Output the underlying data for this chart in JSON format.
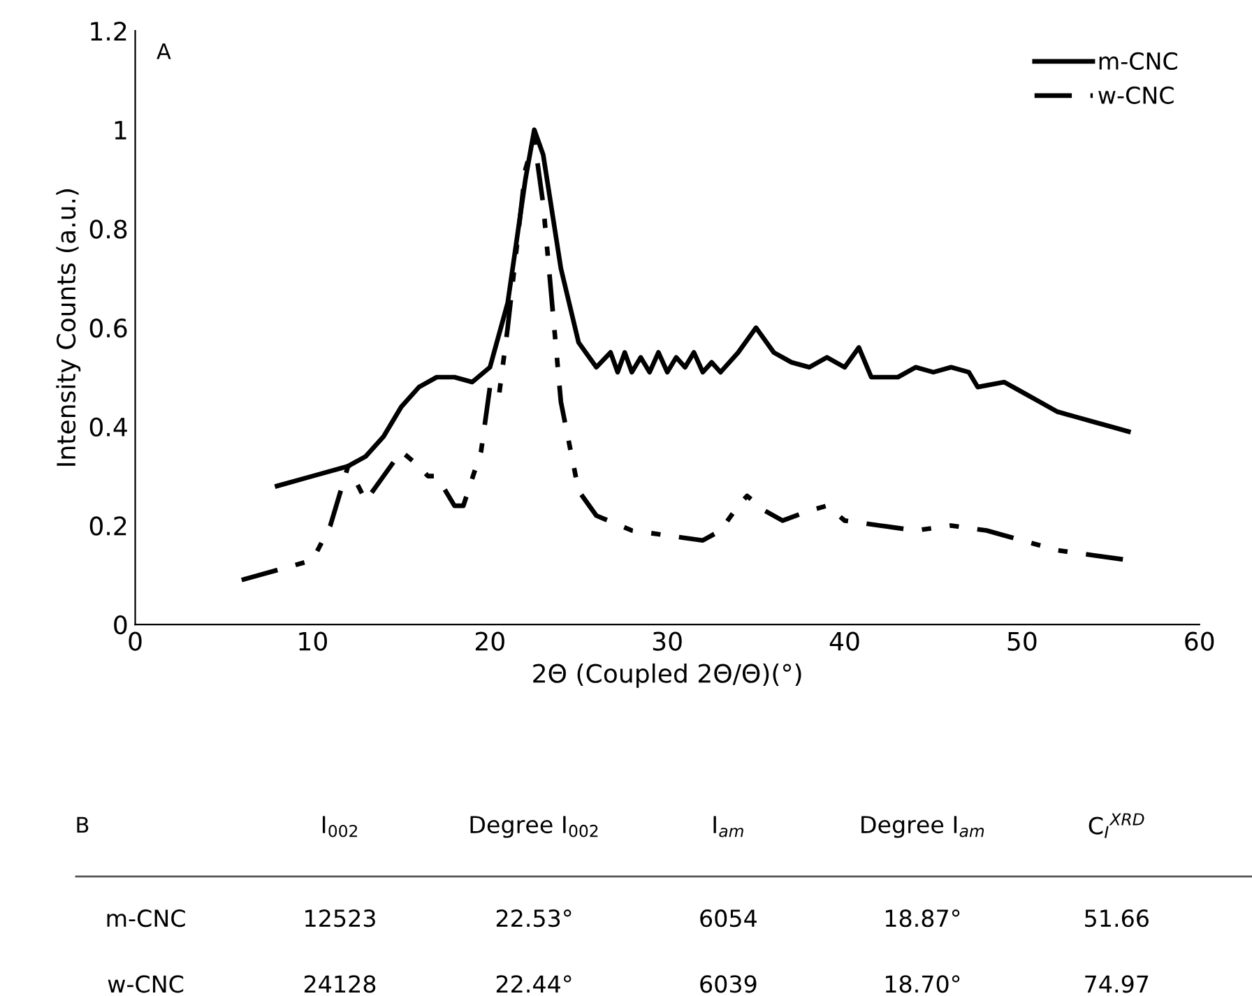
{
  "chart_data": [
    {
      "type": "line",
      "title": "A",
      "xlabel": "2Θ (Coupled 2Θ/Θ)(°)",
      "ylabel": "Intensity Counts (a.u.)",
      "xlim": [
        0,
        60
      ],
      "xticks": [
        0,
        10,
        20,
        30,
        40,
        50,
        60
      ],
      "ylim": [
        0,
        1.2
      ],
      "yticks": [
        0,
        0.2,
        0.4,
        0.6,
        0.8,
        1,
        1.2
      ],
      "grid": false,
      "legend": "top right",
      "series": [
        {
          "name": "m-CNC",
          "color": "#000000",
          "line_style": "solid",
          "x": [
            8,
            10,
            12,
            13,
            14,
            15,
            16,
            17,
            18,
            19,
            20,
            21,
            22,
            22.5,
            23,
            24,
            25,
            26,
            26.8,
            27.2,
            27.6,
            28,
            28.5,
            29,
            29.5,
            30,
            30.5,
            31,
            31.5,
            32,
            32.5,
            33,
            34,
            35,
            36,
            37,
            38,
            39,
            40,
            40.8,
            41.5,
            43,
            44,
            45,
            46,
            47,
            47.5,
            49,
            50,
            51,
            52,
            53,
            54,
            55,
            56
          ],
          "values": [
            0.28,
            0.3,
            0.32,
            0.34,
            0.38,
            0.44,
            0.48,
            0.5,
            0.5,
            0.49,
            0.52,
            0.65,
            0.9,
            1.0,
            0.95,
            0.72,
            0.57,
            0.52,
            0.55,
            0.51,
            0.55,
            0.51,
            0.54,
            0.51,
            0.55,
            0.51,
            0.54,
            0.52,
            0.55,
            0.51,
            0.53,
            0.51,
            0.55,
            0.6,
            0.55,
            0.53,
            0.52,
            0.54,
            0.52,
            0.56,
            0.5,
            0.5,
            0.52,
            0.51,
            0.52,
            0.51,
            0.48,
            0.49,
            0.47,
            0.45,
            0.43,
            0.42,
            0.41,
            0.4,
            0.39
          ]
        },
        {
          "name": "w-CNC",
          "color": "#000000",
          "line_style": "dashed",
          "x": [
            6,
            8,
            10,
            11,
            12,
            13,
            14,
            15,
            16,
            16.5,
            17,
            18,
            18.5,
            19.5,
            20,
            20.5,
            21,
            22,
            22.5,
            23,
            24,
            25,
            26,
            28,
            30,
            32,
            33,
            34,
            34.5,
            35.5,
            36.5,
            38,
            39,
            40,
            42,
            44,
            46,
            48,
            50,
            52,
            54,
            56
          ],
          "values": [
            0.09,
            0.11,
            0.13,
            0.2,
            0.32,
            0.25,
            0.3,
            0.35,
            0.32,
            0.3,
            0.3,
            0.24,
            0.24,
            0.35,
            0.48,
            0.46,
            0.6,
            0.92,
            0.98,
            0.85,
            0.45,
            0.27,
            0.22,
            0.19,
            0.18,
            0.17,
            0.19,
            0.24,
            0.26,
            0.23,
            0.21,
            0.23,
            0.24,
            0.21,
            0.2,
            0.19,
            0.2,
            0.19,
            0.17,
            0.15,
            0.14,
            0.13
          ]
        }
      ]
    },
    {
      "type": "other",
      "title": "B",
      "categories": [
        null,
        "I$_{002}$",
        "Degree I$_{002}$",
        "I$_{am}$",
        "Degree I$_{am}$",
        "C$_{I}$$^{XRD}$"
      ],
      "annotations": [
        "m-CNC",
        "12523",
        "22.53°",
        "6054",
        "18.87°",
        "51.66",
        "w-CNC",
        "24128",
        "22.44°",
        "6039",
        "18.70°",
        "74.97"
      ]
    }
  ]
}
